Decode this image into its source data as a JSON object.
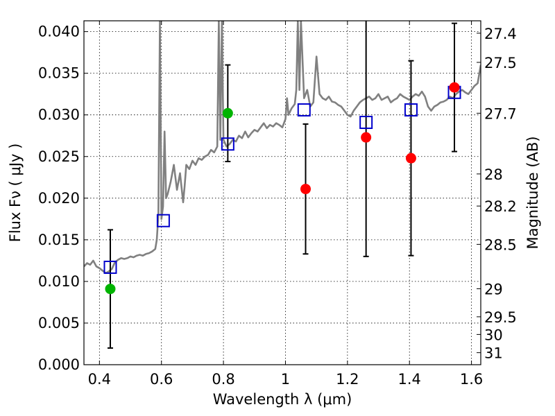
{
  "chart_data": {
    "type": "scatter",
    "title": "",
    "xlabel": "Wavelength  λ (μm)",
    "ylabel": "Flux  Fν ( μJy )",
    "ylabel_right": "Magnitude (AB)",
    "xlim": [
      0.35,
      1.63
    ],
    "ylim": [
      0.0,
      0.0413
    ],
    "grid": true,
    "x_ticks": [
      0.4,
      0.6,
      0.8,
      1.0,
      1.2,
      1.4,
      1.6
    ],
    "x_tick_labels": [
      "0.4",
      "0.6",
      "0.8",
      "1",
      "1.2",
      "1.4",
      "1.6"
    ],
    "y_ticks": [
      0.0,
      0.005,
      0.01,
      0.015,
      0.02,
      0.025,
      0.03,
      0.035,
      0.04
    ],
    "y_tick_labels": [
      "0.000",
      "0.005",
      "0.010",
      "0.015",
      "0.020",
      "0.025",
      "0.030",
      "0.035",
      "0.040"
    ],
    "right_axis": {
      "scale": "AB magnitude",
      "ticks": [
        27.4,
        27.5,
        27.7,
        28,
        28.2,
        28.5,
        29,
        29.5,
        30,
        31
      ],
      "tick_labels": [
        "27.4",
        "27.5",
        "27.7",
        "28",
        "28.2",
        "28.5",
        "29",
        "29.5",
        "30",
        "31"
      ]
    },
    "series": [
      {
        "kind": "spectrum",
        "color": "#808080",
        "x": [
          0.35,
          0.36,
          0.37,
          0.38,
          0.39,
          0.4,
          0.41,
          0.42,
          0.43,
          0.44,
          0.45,
          0.46,
          0.47,
          0.48,
          0.49,
          0.5,
          0.51,
          0.52,
          0.53,
          0.54,
          0.55,
          0.56,
          0.57,
          0.58,
          0.585,
          0.59,
          0.595,
          0.6,
          0.605,
          0.61,
          0.615,
          0.62,
          0.63,
          0.64,
          0.65,
          0.66,
          0.67,
          0.675,
          0.68,
          0.69,
          0.7,
          0.71,
          0.72,
          0.73,
          0.74,
          0.75,
          0.76,
          0.77,
          0.78,
          0.785,
          0.79,
          0.795,
          0.8,
          0.81,
          0.82,
          0.83,
          0.84,
          0.85,
          0.86,
          0.87,
          0.88,
          0.89,
          0.9,
          0.91,
          0.92,
          0.93,
          0.94,
          0.95,
          0.96,
          0.97,
          0.98,
          0.99,
          1.0,
          1.005,
          1.01,
          1.02,
          1.03,
          1.035,
          1.04,
          1.045,
          1.05,
          1.06,
          1.07,
          1.08,
          1.09,
          1.1,
          1.11,
          1.12,
          1.13,
          1.14,
          1.15,
          1.16,
          1.17,
          1.18,
          1.19,
          1.2,
          1.21,
          1.22,
          1.23,
          1.24,
          1.25,
          1.26,
          1.27,
          1.28,
          1.29,
          1.3,
          1.31,
          1.32,
          1.33,
          1.34,
          1.35,
          1.36,
          1.37,
          1.38,
          1.39,
          1.4,
          1.41,
          1.42,
          1.43,
          1.44,
          1.45,
          1.46,
          1.47,
          1.48,
          1.49,
          1.5,
          1.51,
          1.52,
          1.53,
          1.54,
          1.55,
          1.56,
          1.57,
          1.58,
          1.59,
          1.6,
          1.61,
          1.62,
          1.63
        ],
        "y": [
          0.0118,
          0.0122,
          0.012,
          0.0125,
          0.0118,
          0.0116,
          0.0113,
          0.011,
          0.0112,
          0.0115,
          0.0123,
          0.0126,
          0.0128,
          0.0127,
          0.0128,
          0.013,
          0.0129,
          0.0131,
          0.0132,
          0.0131,
          0.0133,
          0.0134,
          0.0136,
          0.0139,
          0.015,
          0.018,
          0.0413,
          0.0175,
          0.019,
          0.028,
          0.02,
          0.0205,
          0.022,
          0.024,
          0.021,
          0.023,
          0.0195,
          0.0215,
          0.024,
          0.0235,
          0.0245,
          0.024,
          0.0248,
          0.0246,
          0.025,
          0.0252,
          0.0258,
          0.0255,
          0.0262,
          0.0413,
          0.027,
          0.0413,
          0.027,
          0.0262,
          0.0265,
          0.027,
          0.0268,
          0.0275,
          0.0272,
          0.028,
          0.0273,
          0.0278,
          0.0282,
          0.028,
          0.0285,
          0.029,
          0.0284,
          0.0288,
          0.0286,
          0.029,
          0.0288,
          0.0285,
          0.0295,
          0.032,
          0.03,
          0.0308,
          0.0313,
          0.033,
          0.0413,
          0.033,
          0.0413,
          0.032,
          0.033,
          0.031,
          0.0315,
          0.037,
          0.0325,
          0.032,
          0.0318,
          0.0322,
          0.0316,
          0.0315,
          0.0312,
          0.031,
          0.0305,
          0.03,
          0.0298,
          0.0305,
          0.031,
          0.0315,
          0.0318,
          0.032,
          0.0322,
          0.0318,
          0.032,
          0.0325,
          0.0318,
          0.032,
          0.0322,
          0.0315,
          0.0318,
          0.032,
          0.0325,
          0.0322,
          0.032,
          0.0318,
          0.0322,
          0.0325,
          0.0323,
          0.0328,
          0.0322,
          0.031,
          0.0305,
          0.031,
          0.0312,
          0.0315,
          0.0316,
          0.0318,
          0.0322,
          0.032,
          0.0325,
          0.0328,
          0.033,
          0.0327,
          0.0325,
          0.033,
          0.0335,
          0.0338,
          0.036
        ]
      },
      {
        "kind": "model-photometry",
        "color": "#0000cc",
        "marker": "open-square",
        "x": [
          0.435,
          0.606,
          0.814,
          1.06,
          1.26,
          1.405,
          1.545
        ],
        "y": [
          0.0117,
          0.0173,
          0.0265,
          0.0306,
          0.0291,
          0.0306,
          0.0327
        ]
      },
      {
        "kind": "detections",
        "color": "#00b400",
        "marker": "filled-circle",
        "x": [
          0.435,
          0.814
        ],
        "y": [
          0.0091,
          0.0302
        ],
        "yerr_low": [
          0.0071,
          0.0058
        ],
        "yerr_high": [
          0.0071,
          0.0058
        ]
      },
      {
        "kind": "upper-limits",
        "color": "#ff0000",
        "marker": "filled-circle",
        "x": [
          1.065,
          1.26,
          1.405,
          1.545
        ],
        "y": [
          0.0211,
          0.0273,
          0.0248,
          0.0333
        ],
        "yerr_low": [
          0.0078,
          0.0143,
          0.0117,
          0.0077
        ],
        "yerr_high": [
          0.0078,
          0.0143,
          0.0117,
          0.0077
        ]
      }
    ],
    "error_bars": [
      {
        "x": 0.435,
        "low": 0.002,
        "high": 0.0162
      },
      {
        "x": 0.814,
        "low": 0.0244,
        "high": 0.036
      },
      {
        "x": 1.065,
        "low": 0.0133,
        "high": 0.0289
      },
      {
        "x": 1.26,
        "low": 0.013,
        "high": 0.0416
      },
      {
        "x": 1.405,
        "low": 0.0131,
        "high": 0.0365
      },
      {
        "x": 1.545,
        "low": 0.0256,
        "high": 0.041
      }
    ]
  }
}
